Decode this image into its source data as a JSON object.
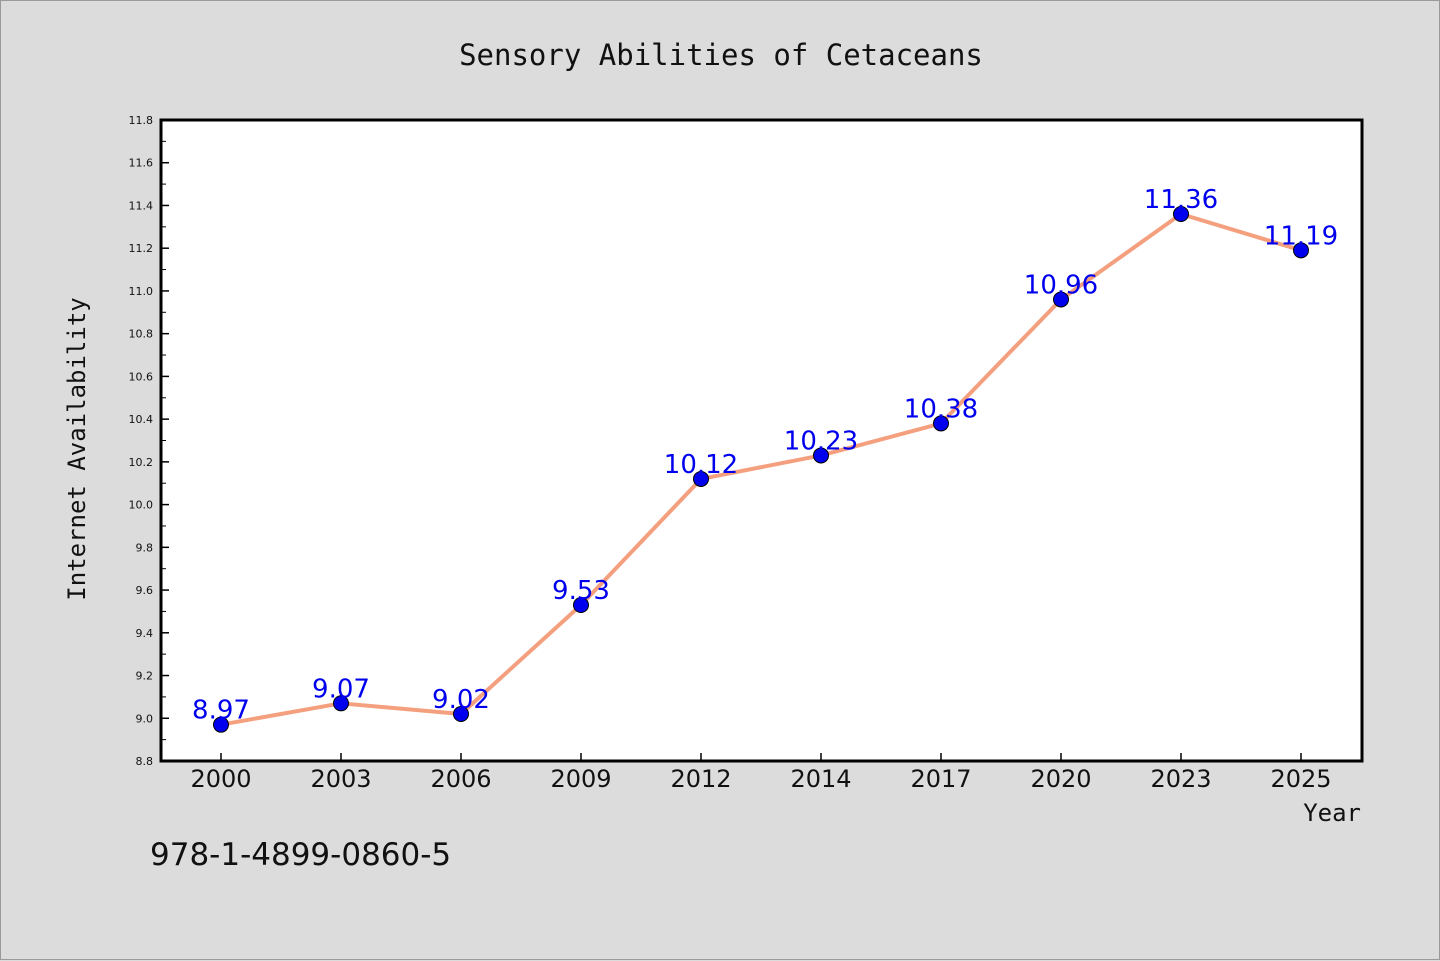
{
  "chart_data": {
    "type": "line",
    "title": "Sensory Abilities of Cetaceans",
    "xlabel": "Year",
    "ylabel": "Internet Availability",
    "categories": [
      "2000",
      "2003",
      "2006",
      "2009",
      "2012",
      "2014",
      "2017",
      "2020",
      "2023",
      "2025"
    ],
    "series": [
      {
        "values": [
          8.97,
          9.07,
          9.02,
          9.53,
          10.12,
          10.23,
          10.38,
          10.96,
          11.36,
          11.19
        ],
        "line_color": "#f4a07f",
        "marker_color": "#0000ee"
      }
    ],
    "ylim": [
      8.8,
      11.8
    ],
    "yticks": [
      8.8,
      9.0,
      9.2,
      9.4,
      9.6,
      9.8,
      10.0,
      10.2,
      10.4,
      10.6,
      10.8,
      11.0,
      11.2,
      11.4,
      11.6,
      11.8
    ],
    "data_labels": true,
    "grid": false,
    "legend": "none"
  },
  "footer": {
    "isbn": "978-1-4899-0860-5"
  },
  "colors": {
    "background": "#dcdcdc",
    "plot_background": "#ffffff",
    "label_color": "#0000ee"
  }
}
